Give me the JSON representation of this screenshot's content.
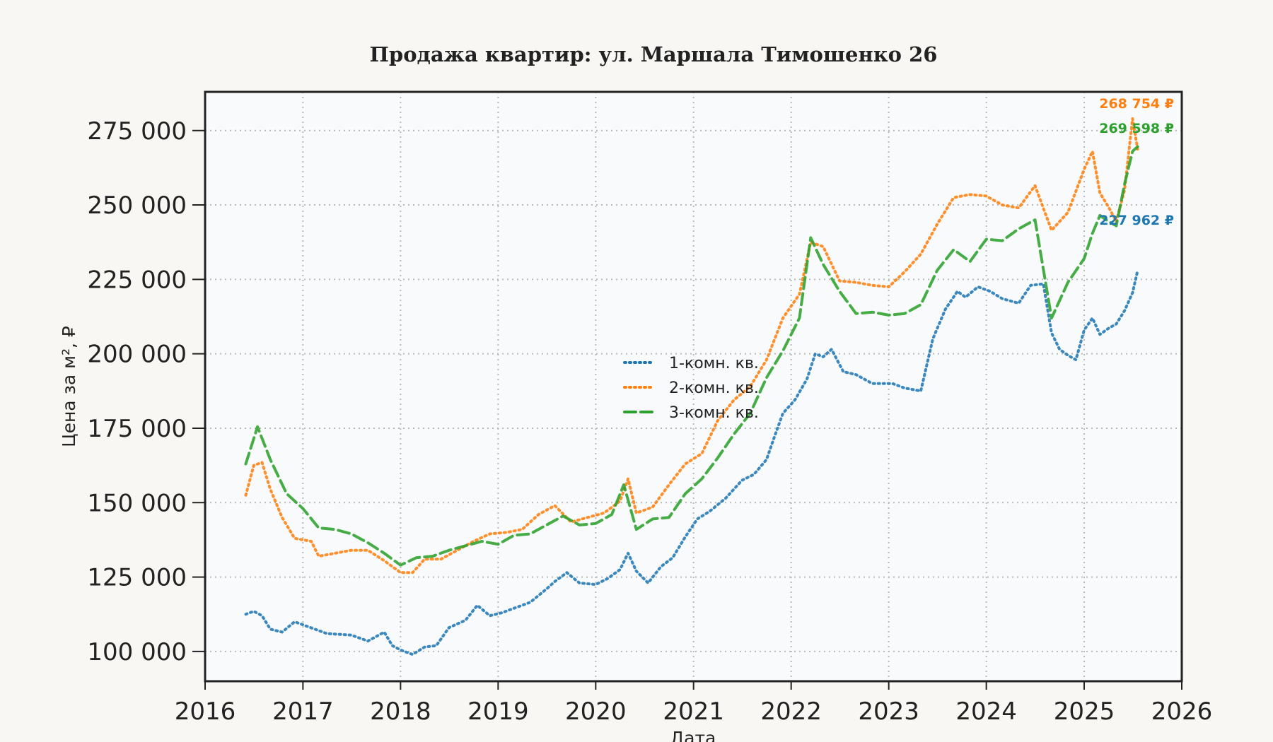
{
  "chart_data": {
    "type": "line",
    "title": "Продажа квартир: ул. Маршала Тимошенко 26",
    "xlabel": "Дата",
    "ylabel": "Цена за м², ₽",
    "xlim": [
      "2016-01-01",
      "2026-01-01"
    ],
    "ylim": [
      90000,
      288000
    ],
    "x_ticks": [
      "2016",
      "2017",
      "2018",
      "2019",
      "2020",
      "2021",
      "2022",
      "2023",
      "2024",
      "2025",
      "2026"
    ],
    "y_ticks": [
      100000,
      125000,
      150000,
      175000,
      200000,
      225000,
      250000,
      275000
    ],
    "y_tick_labels": [
      "100 000",
      "125 000",
      "150 000",
      "175 000",
      "200 000",
      "225 000",
      "250 000",
      "275 000"
    ],
    "grid": true,
    "legend_position": "center",
    "series": [
      {
        "name": "1-комн. кв.",
        "color": "#1f77b4",
        "style": "dotted",
        "end_label": "227 962 ₽",
        "points": [
          [
            "2016-06-01",
            112500
          ],
          [
            "2016-07-01",
            113500
          ],
          [
            "2016-08-01",
            112000
          ],
          [
            "2016-09-01",
            107500
          ],
          [
            "2016-10-15",
            106500
          ],
          [
            "2016-12-01",
            110000
          ],
          [
            "2017-01-15",
            108500
          ],
          [
            "2017-04-01",
            106000
          ],
          [
            "2017-07-01",
            105500
          ],
          [
            "2017-09-01",
            103500
          ],
          [
            "2017-11-01",
            106500
          ],
          [
            "2017-12-01",
            102000
          ],
          [
            "2018-01-01",
            100500
          ],
          [
            "2018-02-15",
            99000
          ],
          [
            "2018-04-01",
            101500
          ],
          [
            "2018-05-15",
            102000
          ],
          [
            "2018-07-01",
            108000
          ],
          [
            "2018-09-01",
            110500
          ],
          [
            "2018-10-15",
            115500
          ],
          [
            "2018-12-01",
            112000
          ],
          [
            "2019-01-15",
            113000
          ],
          [
            "2019-03-01",
            114500
          ],
          [
            "2019-05-01",
            116500
          ],
          [
            "2019-07-01",
            121000
          ],
          [
            "2019-08-01",
            123500
          ],
          [
            "2019-09-15",
            126500
          ],
          [
            "2019-11-01",
            123000
          ],
          [
            "2020-01-01",
            122500
          ],
          [
            "2020-02-15",
            124500
          ],
          [
            "2020-04-01",
            127500
          ],
          [
            "2020-05-01",
            133000
          ],
          [
            "2020-06-01",
            127000
          ],
          [
            "2020-07-15",
            123000
          ],
          [
            "2020-09-01",
            128500
          ],
          [
            "2020-10-15",
            131500
          ],
          [
            "2020-12-01",
            138500
          ],
          [
            "2021-01-15",
            144500
          ],
          [
            "2021-03-01",
            147000
          ],
          [
            "2021-05-01",
            151500
          ],
          [
            "2021-07-01",
            157500
          ],
          [
            "2021-08-15",
            159500
          ],
          [
            "2021-10-01",
            164500
          ],
          [
            "2021-11-01",
            172500
          ],
          [
            "2021-12-01",
            180000
          ],
          [
            "2022-01-15",
            184500
          ],
          [
            "2022-03-01",
            191500
          ],
          [
            "2022-04-01",
            200000
          ],
          [
            "2022-05-01",
            199000
          ],
          [
            "2022-06-01",
            201500
          ],
          [
            "2022-07-15",
            194000
          ],
          [
            "2022-09-01",
            193000
          ],
          [
            "2022-11-01",
            190000
          ],
          [
            "2023-01-15",
            190000
          ],
          [
            "2023-03-01",
            188500
          ],
          [
            "2023-05-01",
            187500
          ],
          [
            "2023-06-15",
            205000
          ],
          [
            "2023-08-01",
            215000
          ],
          [
            "2023-09-15",
            221000
          ],
          [
            "2023-10-15",
            219000
          ],
          [
            "2023-12-01",
            222500
          ],
          [
            "2024-01-15",
            221000
          ],
          [
            "2024-03-01",
            218500
          ],
          [
            "2024-05-01",
            217000
          ],
          [
            "2024-06-15",
            223000
          ],
          [
            "2024-08-01",
            223500
          ],
          [
            "2024-09-01",
            207000
          ],
          [
            "2024-10-01",
            201500
          ],
          [
            "2024-11-01",
            199500
          ],
          [
            "2024-12-01",
            198000
          ],
          [
            "2025-01-01",
            208000
          ],
          [
            "2025-02-01",
            212000
          ],
          [
            "2025-03-01",
            206500
          ],
          [
            "2025-04-01",
            208500
          ],
          [
            "2025-05-01",
            210000
          ],
          [
            "2025-06-01",
            214500
          ],
          [
            "2025-07-01",
            220500
          ],
          [
            "2025-07-20",
            227962
          ]
        ]
      },
      {
        "name": "2-комн. кв.",
        "color": "#ff7f0e",
        "style": "dotted",
        "end_label": "268 754 ₽",
        "points": [
          [
            "2016-06-01",
            152500
          ],
          [
            "2016-07-01",
            162500
          ],
          [
            "2016-08-01",
            163500
          ],
          [
            "2016-09-01",
            154500
          ],
          [
            "2016-10-15",
            145000
          ],
          [
            "2016-12-01",
            138000
          ],
          [
            "2017-02-01",
            137000
          ],
          [
            "2017-03-01",
            132000
          ],
          [
            "2017-05-01",
            133000
          ],
          [
            "2017-07-01",
            134000
          ],
          [
            "2017-09-01",
            134000
          ],
          [
            "2017-11-01",
            130500
          ],
          [
            "2018-01-01",
            126500
          ],
          [
            "2018-02-15",
            126500
          ],
          [
            "2018-04-01",
            131000
          ],
          [
            "2018-06-01",
            131000
          ],
          [
            "2018-08-01",
            134000
          ],
          [
            "2018-10-01",
            137000
          ],
          [
            "2018-12-01",
            139500
          ],
          [
            "2019-02-01",
            140000
          ],
          [
            "2019-04-01",
            141000
          ],
          [
            "2019-06-01",
            146000
          ],
          [
            "2019-08-01",
            149000
          ],
          [
            "2019-10-01",
            143500
          ],
          [
            "2019-12-01",
            145000
          ],
          [
            "2020-02-01",
            146500
          ],
          [
            "2020-04-01",
            150500
          ],
          [
            "2020-05-01",
            158000
          ],
          [
            "2020-06-01",
            146500
          ],
          [
            "2020-08-01",
            148500
          ],
          [
            "2020-10-01",
            156000
          ],
          [
            "2020-12-01",
            163000
          ],
          [
            "2021-02-01",
            166500
          ],
          [
            "2021-04-01",
            177500
          ],
          [
            "2021-06-01",
            184500
          ],
          [
            "2021-08-01",
            189000
          ],
          [
            "2021-10-01",
            198000
          ],
          [
            "2021-12-01",
            212000
          ],
          [
            "2022-02-01",
            220000
          ],
          [
            "2022-03-15",
            237500
          ],
          [
            "2022-05-01",
            236000
          ],
          [
            "2022-07-01",
            224500
          ],
          [
            "2022-09-01",
            224000
          ],
          [
            "2022-11-01",
            223000
          ],
          [
            "2023-01-01",
            222500
          ],
          [
            "2023-03-01",
            227500
          ],
          [
            "2023-05-01",
            233500
          ],
          [
            "2023-07-01",
            243500
          ],
          [
            "2023-09-01",
            252500
          ],
          [
            "2023-11-01",
            253500
          ],
          [
            "2024-01-01",
            253000
          ],
          [
            "2024-03-01",
            250000
          ],
          [
            "2024-05-01",
            249000
          ],
          [
            "2024-07-01",
            256500
          ],
          [
            "2024-09-01",
            241500
          ],
          [
            "2024-11-01",
            247500
          ],
          [
            "2025-01-01",
            262000
          ],
          [
            "2025-02-01",
            268000
          ],
          [
            "2025-03-01",
            254000
          ],
          [
            "2025-04-01",
            249500
          ],
          [
            "2025-05-01",
            244500
          ],
          [
            "2025-06-01",
            255000
          ],
          [
            "2025-07-01",
            279000
          ],
          [
            "2025-07-20",
            268754
          ]
        ]
      },
      {
        "name": "3-комн. кв.",
        "color": "#2ca02c",
        "style": "dashed",
        "end_label": "269 598 ₽",
        "points": [
          [
            "2016-06-01",
            163000
          ],
          [
            "2016-07-15",
            175500
          ],
          [
            "2016-09-01",
            164500
          ],
          [
            "2016-11-01",
            153000
          ],
          [
            "2017-01-01",
            148000
          ],
          [
            "2017-03-01",
            141500
          ],
          [
            "2017-05-01",
            141000
          ],
          [
            "2017-07-01",
            139500
          ],
          [
            "2017-09-01",
            136500
          ],
          [
            "2017-11-01",
            133000
          ],
          [
            "2018-01-01",
            129000
          ],
          [
            "2018-03-01",
            131500
          ],
          [
            "2018-05-01",
            132000
          ],
          [
            "2018-07-01",
            134000
          ],
          [
            "2018-09-01",
            135500
          ],
          [
            "2018-11-01",
            137000
          ],
          [
            "2019-01-01",
            136000
          ],
          [
            "2019-03-01",
            139000
          ],
          [
            "2019-05-01",
            139500
          ],
          [
            "2019-07-01",
            142500
          ],
          [
            "2019-09-01",
            145500
          ],
          [
            "2019-11-01",
            142500
          ],
          [
            "2020-01-01",
            143000
          ],
          [
            "2020-03-01",
            146000
          ],
          [
            "2020-04-15",
            156000
          ],
          [
            "2020-06-01",
            141000
          ],
          [
            "2020-08-01",
            144500
          ],
          [
            "2020-10-01",
            145000
          ],
          [
            "2020-12-01",
            153000
          ],
          [
            "2021-02-01",
            158000
          ],
          [
            "2021-04-01",
            165000
          ],
          [
            "2021-06-01",
            173000
          ],
          [
            "2021-08-01",
            180000
          ],
          [
            "2021-10-01",
            192000
          ],
          [
            "2021-12-01",
            201000
          ],
          [
            "2022-02-01",
            212000
          ],
          [
            "2022-03-15",
            239000
          ],
          [
            "2022-05-01",
            230000
          ],
          [
            "2022-07-01",
            221000
          ],
          [
            "2022-09-01",
            213500
          ],
          [
            "2022-11-01",
            214000
          ],
          [
            "2023-01-01",
            213000
          ],
          [
            "2023-03-01",
            213500
          ],
          [
            "2023-05-01",
            216500
          ],
          [
            "2023-07-01",
            228000
          ],
          [
            "2023-09-01",
            235000
          ],
          [
            "2023-11-01",
            231000
          ],
          [
            "2024-01-01",
            238500
          ],
          [
            "2024-03-01",
            238000
          ],
          [
            "2024-05-01",
            242000
          ],
          [
            "2024-07-01",
            245000
          ],
          [
            "2024-09-01",
            212000
          ],
          [
            "2024-11-01",
            224000
          ],
          [
            "2025-01-01",
            232000
          ],
          [
            "2025-02-01",
            240500
          ],
          [
            "2025-03-01",
            246500
          ],
          [
            "2025-04-01",
            244500
          ],
          [
            "2025-05-01",
            243000
          ],
          [
            "2025-06-01",
            257000
          ],
          [
            "2025-07-01",
            268000
          ],
          [
            "2025-07-20",
            269598
          ]
        ]
      }
    ]
  }
}
